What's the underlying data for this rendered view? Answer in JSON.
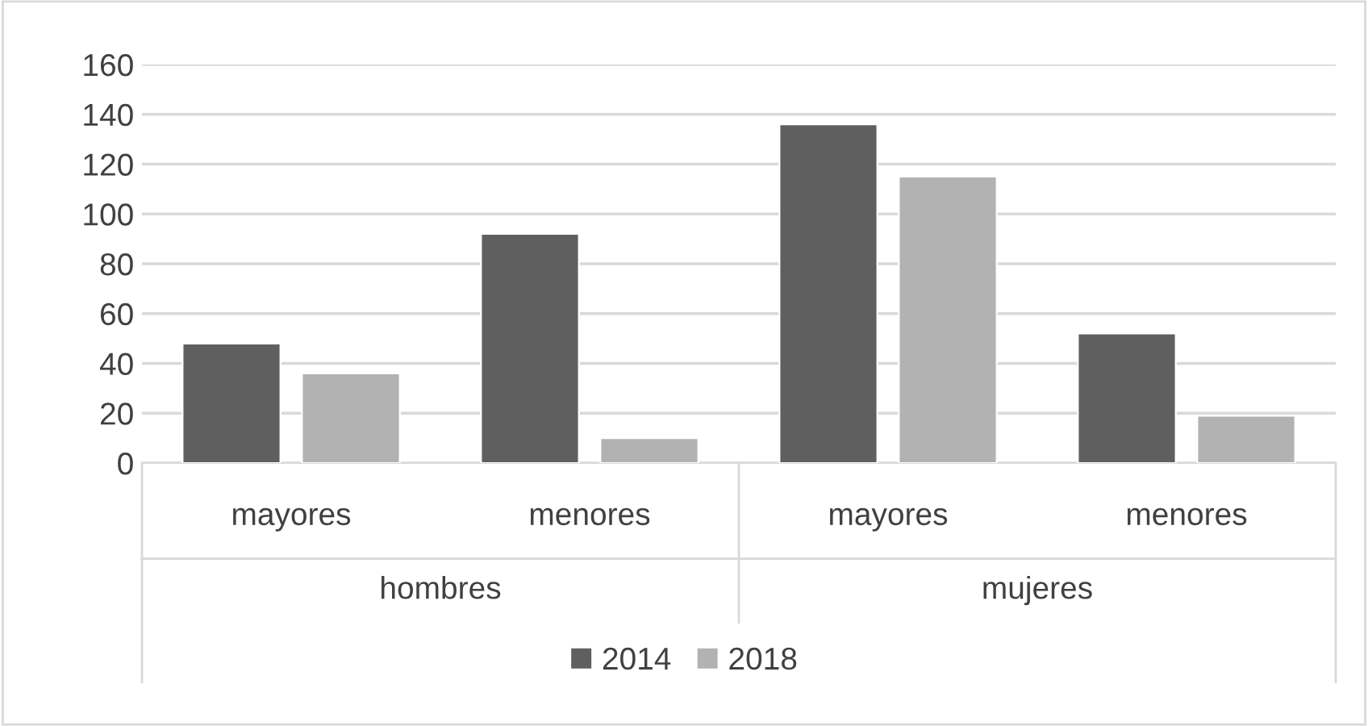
{
  "chart_data": {
    "type": "bar",
    "categories": [
      "mayores",
      "menores",
      "mayores",
      "menores"
    ],
    "series": [
      {
        "name": "2014",
        "color": "#5f5f5f",
        "values": [
          48,
          92,
          136,
          52
        ]
      },
      {
        "name": "2018",
        "color": "#b2b2b2",
        "values": [
          36,
          10,
          115,
          19
        ]
      }
    ],
    "annotations": [
      "hombres",
      "mujeres"
    ],
    "ylim": [
      0,
      160
    ],
    "yticks": [
      0,
      20,
      40,
      60,
      80,
      100,
      120,
      140,
      160
    ],
    "grid": "y",
    "legend": "bottom"
  }
}
